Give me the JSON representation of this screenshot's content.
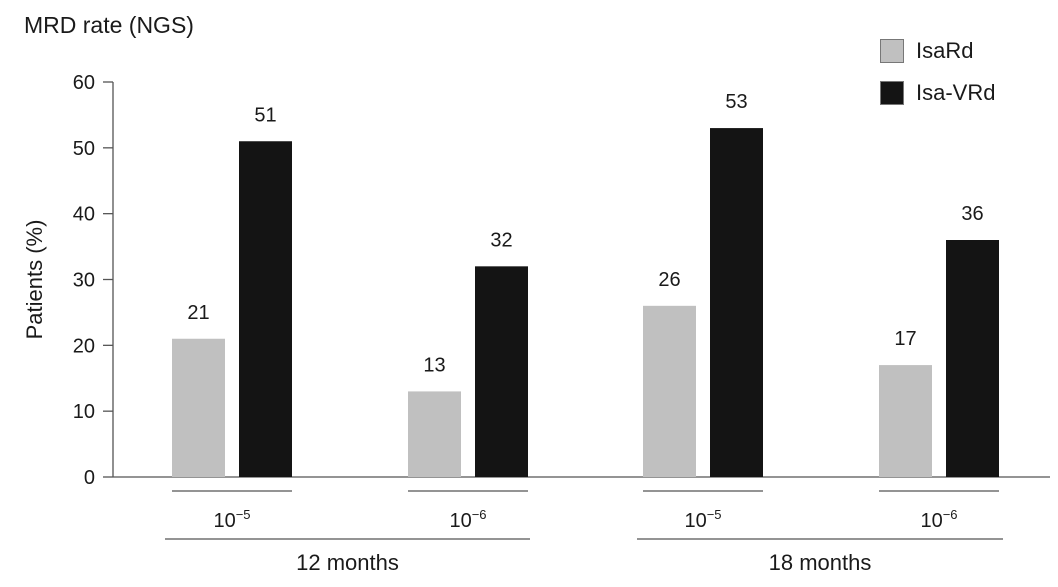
{
  "chart_data": {
    "type": "bar",
    "title": "MRD rate (NGS)",
    "ylabel": "Patients (%)",
    "ylim": [
      0,
      60
    ],
    "yticks": [
      0,
      10,
      20,
      30,
      40,
      50,
      60
    ],
    "groups": [
      {
        "label": "12 months",
        "subgroups": [
          "10−5",
          "10−6"
        ]
      },
      {
        "label": "18 months",
        "subgroups": [
          "10−5",
          "10−6"
        ]
      }
    ],
    "categories": [
      "12 months 10−5",
      "12 months 10−6",
      "18 months 10−5",
      "18 months 10−6"
    ],
    "series": [
      {
        "name": "IsaRd",
        "color": "#c0c0c0",
        "values": [
          21,
          13,
          26,
          17
        ]
      },
      {
        "name": "Isa-VRd",
        "color": "#141414",
        "values": [
          51,
          32,
          53,
          36
        ]
      }
    ],
    "legend_position": "top-right",
    "grid": false
  }
}
